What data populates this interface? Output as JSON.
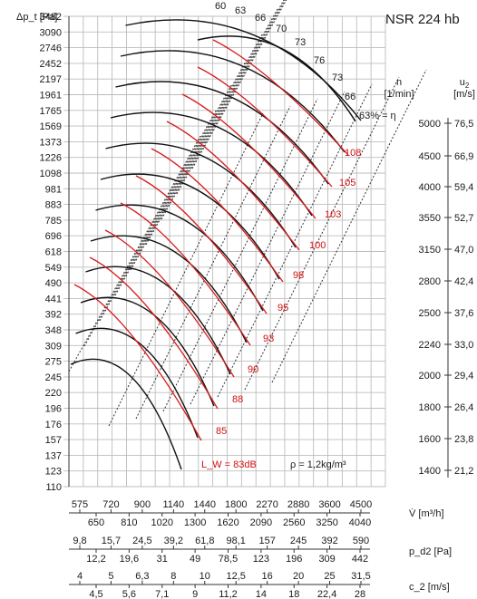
{
  "chart_data": {
    "type": "line",
    "title": "NSR 224 hb",
    "ylabel": "Δp_t [Pa]",
    "y_ticks": [
      "3482",
      "3090",
      "2746",
      "2452",
      "2197",
      "1961",
      "1765",
      "1569",
      "1373",
      "1226",
      "1098",
      "981",
      "883",
      "785",
      "696",
      "618",
      "549",
      "490",
      "441",
      "392",
      "348",
      "309",
      "275",
      "245",
      "220",
      "196",
      "176",
      "157",
      "137",
      "123",
      "110"
    ],
    "x_scales": [
      {
        "label": "V̇ [m³/h]",
        "top": [
          "575",
          "720",
          "900",
          "1140",
          "1440",
          "1800",
          "2270",
          "2880",
          "3600",
          "4500"
        ],
        "bottom": [
          "650",
          "810",
          "1020",
          "1300",
          "1620",
          "2090",
          "2560",
          "3250",
          "4040"
        ]
      },
      {
        "label": "p_d2 [Pa]",
        "top": [
          "9,8",
          "15,7",
          "24,5",
          "39,2",
          "61,8",
          "98,1",
          "157",
          "245",
          "392",
          "590"
        ],
        "bottom": [
          "12,2",
          "19,6",
          "31",
          "49",
          "78,5",
          "123",
          "196",
          "309",
          "442"
        ]
      },
      {
        "label": "c_2 [m/s]",
        "top": [
          "4",
          "5",
          "6,3",
          "8",
          "10",
          "12,5",
          "16",
          "20",
          "25",
          "31,5"
        ],
        "bottom": [
          "4,5",
          "5,6",
          "7,1",
          "9",
          "11,2",
          "14",
          "18",
          "22,4",
          "28"
        ]
      }
    ],
    "right_scale": {
      "n_label": "n [1/min]",
      "u_label": "u_2 [m/s]",
      "n": [
        "5000",
        "4500",
        "4000",
        "3550",
        "3150",
        "2800",
        "2500",
        "2240",
        "2000",
        "1800",
        "1600",
        "1400"
      ],
      "u": [
        "76,5",
        "66,9",
        "59,4",
        "52,7",
        "47,0",
        "42,4",
        "37,6",
        "33,0",
        "29,4",
        "26,4",
        "23,8",
        "21,2"
      ]
    },
    "efficiency_labels": [
      "60",
      "63",
      "66",
      "70",
      "73",
      "76",
      "73",
      "66",
      "63% = η"
    ],
    "sound_labels": [
      "108",
      "105",
      "103",
      "100",
      "98",
      "95",
      "93",
      "90",
      "88",
      "85"
    ],
    "sound_prefix": "L_W = 83dB",
    "density_note": "ρ = 1,2kg/m³",
    "series": []
  }
}
